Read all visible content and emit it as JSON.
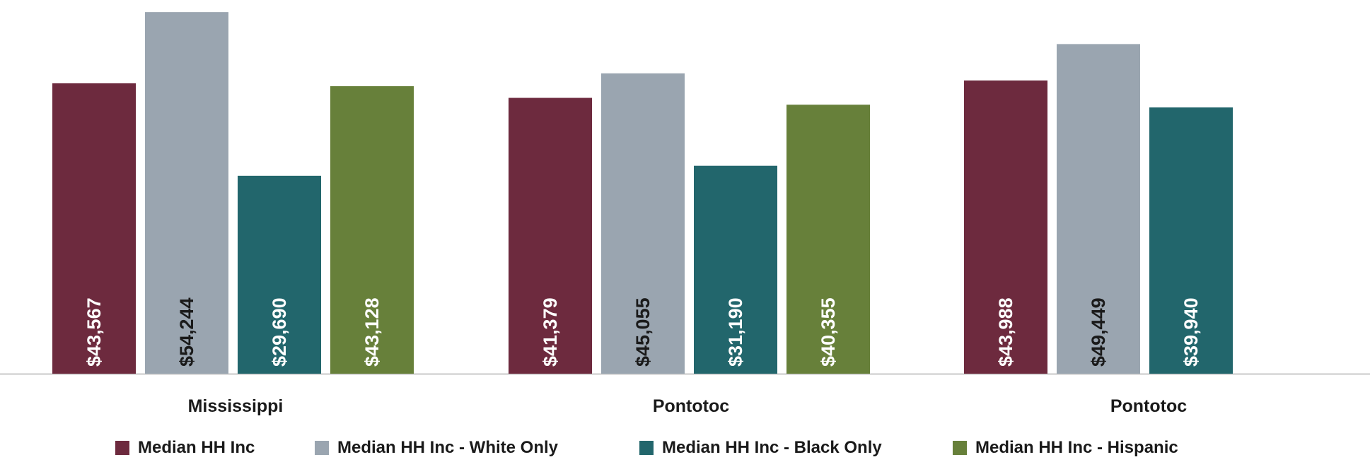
{
  "chart_data": {
    "type": "bar",
    "categories": [
      "Mississippi",
      "Pontotoc",
      "Pontotoc"
    ],
    "series": [
      {
        "name": "Median HH Inc",
        "color": "#6d2a3e",
        "values": [
          43567,
          41379,
          43988
        ],
        "labels": [
          "$43,567",
          "$41,379",
          "$43,988"
        ],
        "label_color": "#ffffff"
      },
      {
        "name": "Median HH Inc - White Only",
        "color": "#9aa5b0",
        "values": [
          54244,
          45055,
          49449
        ],
        "labels": [
          "$54,244",
          "$45,055",
          "$49,449"
        ],
        "label_color": "#1a1a1a"
      },
      {
        "name": "Median HH Inc - Black Only",
        "color": "#22666c",
        "values": [
          29690,
          31190,
          39940
        ],
        "labels": [
          "$29,690",
          "$31,190",
          "$39,940"
        ],
        "label_color": "#ffffff"
      },
      {
        "name": "Median HH Inc - Hispanic",
        "color": "#67803a",
        "values": [
          43128,
          40355,
          null
        ],
        "labels": [
          "$43,128",
          "$40,355",
          null
        ],
        "label_color": "#ffffff"
      }
    ],
    "ylim": [
      0,
      55000
    ],
    "grid": false,
    "legend_position": "bottom"
  }
}
